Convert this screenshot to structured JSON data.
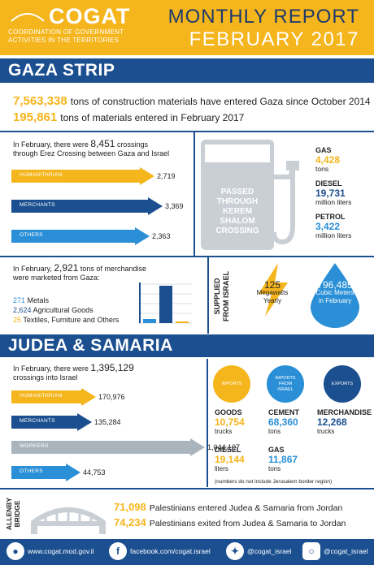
{
  "header": {
    "logo_word": "COGAT",
    "logo_sub_1": "COORDINATION OF GOVERNMENT",
    "logo_sub_2": "ACTIVITIES IN THE TERRITORIES",
    "title": "MONTHLY REPORT",
    "subtitle": "FEBRUARY 2017",
    "color_yellow": "#f5b51c",
    "color_blue": "#1b4f8f"
  },
  "gaza": {
    "bar_title": "GAZA STRIP",
    "construction_value": "7,563,338",
    "construction_text": "tons of construction materials have entered Gaza since October 2014",
    "materials_value": "195,861",
    "materials_text": "tons of materials entered in February 2017",
    "crossings_pre": "In February, there were",
    "crossings_value": "8,451",
    "crossings_post": "crossings",
    "crossings_line2": "through Erez Crossing between Gaza and Israel",
    "arrows": [
      {
        "label": "HUMANITARIAN",
        "value": "2,719",
        "level": 2719,
        "color": "#f5b51c"
      },
      {
        "label": "MERCHANTS",
        "value": "3,369",
        "level": 3369,
        "color": "#1b4f8f"
      },
      {
        "label": "OTHERS",
        "value": "2,363",
        "level": 2363,
        "color": "#2a8fd6"
      }
    ],
    "pump_text": [
      "PASSED",
      "THROUGH",
      "KEREM",
      "SHALOM",
      "CROSSING"
    ],
    "fuel": [
      {
        "name": "GAS",
        "value": "4,428",
        "unit": "tons",
        "color": "#f5b51c"
      },
      {
        "name": "DIESEL",
        "value": "19,731",
        "unit": "million liters",
        "color": "#1b4f8f"
      },
      {
        "name": "PETROL",
        "value": "3,422",
        "unit": "million liters",
        "color": "#2a8fd6"
      }
    ],
    "merch_pre": "In  February,",
    "merch_value": "2,921",
    "merch_post": "tons of merchandise",
    "merch_line2": "were marketed from Gaza:",
    "merch_items": [
      {
        "value": "271",
        "label": "Metals",
        "color": "#2a8fd6",
        "level": 271
      },
      {
        "value": "2,624",
        "label": "Agricultural Goods",
        "color": "#1b4f8f",
        "level": 2624
      },
      {
        "value": "25",
        "label": "Textiles, Furniture and Others",
        "color": "#f5b51c",
        "level": 25
      }
    ],
    "supplied_label_1": "SUPPLIED",
    "supplied_label_2": "FROM ISRAEL",
    "electricity_value": "125",
    "electricity_unit_1": "Megawatts",
    "electricity_unit_2": "Yearly",
    "water_value": "796,485",
    "water_unit_1": "Cubic Meters",
    "water_unit_2": "in February"
  },
  "judea": {
    "bar_title": "JUDEA & SAMARIA",
    "crossings_pre": "In February, there were",
    "crossings_value": "1,395,129",
    "crossings_line2": "crossings into Israel",
    "arrows": [
      {
        "label": "HUMANITARIAN",
        "value": "170,976",
        "level": 170976,
        "color": "#f5b51c"
      },
      {
        "label": "MERCHANTS",
        "value": "135,284",
        "level": 135284,
        "color": "#1b4f8f"
      },
      {
        "label": "WORKERS",
        "value": "1,044,107",
        "level": 1044107,
        "color": "#a9b4bd"
      },
      {
        "label": "OTHERS",
        "value": "44,753",
        "level": 44753,
        "color": "#2a8fd6"
      }
    ],
    "circles": [
      {
        "label": "IMPORTS",
        "color": "#f5b51c"
      },
      {
        "label": "IMPORTS FROM ISRAEL",
        "color": "#2a8fd6"
      },
      {
        "label": "EXPORTS",
        "color": "#1b4f8f"
      }
    ],
    "goods": {
      "name": "GOODS",
      "value": "10,754",
      "unit": "trucks",
      "color": "#f5b51c"
    },
    "cement": {
      "name": "CEMENT",
      "value": "68,360",
      "unit": "tons",
      "color": "#2a8fd6"
    },
    "merchandise": {
      "name": "MERCHANDISE",
      "value": "12,268",
      "unit": "trucks",
      "color": "#1b4f8f"
    },
    "diesel": {
      "name": "DIESEL",
      "value": "19,144",
      "unit": "liters",
      "color": "#f5b51c"
    },
    "gas": {
      "name": "GAS",
      "value": "11,867",
      "unit": "tons",
      "color": "#2a8fd6"
    },
    "note": "(numbers do not include Jerusalem border region)"
  },
  "allenby": {
    "label_1": "ALLENBY",
    "label_2": "BRIDGE",
    "entered_value": "71,098",
    "entered_text": "Palestinians entered Judea & Samaria from Jordan",
    "exited_value": "74,234",
    "exited_text": "Palestinians exited from Judea & Samaria to Jordan"
  },
  "footer": {
    "website": "www.cogat.mod.gov.il",
    "facebook": "facebook.com/cogat.israel",
    "twitter": "@cogat_israel",
    "instagram": "@cogat_israel",
    "icons": [
      "globe-icon",
      "facebook-icon",
      "twitter-icon",
      "instagram-icon"
    ]
  }
}
